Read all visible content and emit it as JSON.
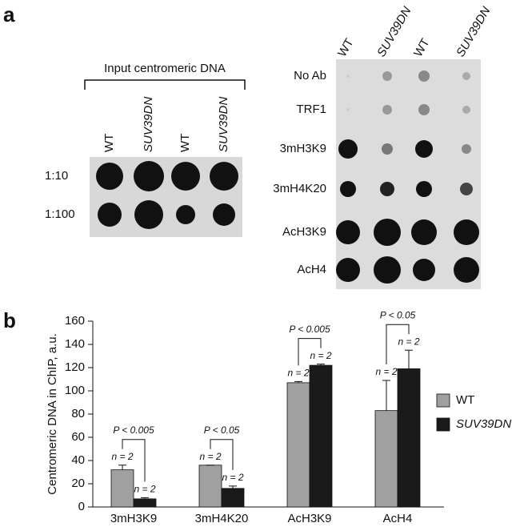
{
  "panel_a": {
    "label": "a",
    "input_title": "Input centromeric DNA",
    "input_columns": [
      "WT",
      "SUV39DN",
      "WT",
      "SUV39DN"
    ],
    "input_rows": [
      "1:10",
      "1:100"
    ],
    "chip_columns": [
      "WT",
      "SUV39DN",
      "WT",
      "SUV39DN"
    ],
    "chip_rows": [
      "No Ab",
      "TRF1",
      "3mH3K9",
      "3mH4K20",
      "AcH3K9",
      "AcH4"
    ]
  },
  "chart_data": {
    "type": "bar",
    "panel_label": "b",
    "y_label": "Centromeric DNA in ChIP, a.u.",
    "categories": [
      "3mH3K9",
      "3mH4K20",
      "AcH3K9",
      "AcH4"
    ],
    "series": [
      {
        "name": "WT",
        "color": "#a0a0a0",
        "values": [
          32,
          36,
          107,
          83
        ],
        "errors": [
          4,
          0,
          1,
          26
        ],
        "n_labels": [
          "n = 2",
          "n = 2",
          "n = 2",
          "n = 2"
        ]
      },
      {
        "name": "SUV39DN",
        "color": "#1a1a1a",
        "values": [
          7,
          16,
          122,
          119
        ],
        "errors": [
          1,
          2,
          1,
          16
        ],
        "n_labels": [
          "n = 2",
          "n = 2",
          "n = 2",
          "n = 2"
        ]
      }
    ],
    "p_values": [
      "P < 0.005",
      "P < 0.05",
      "P < 0.005",
      "P < 0.05"
    ],
    "ylim": [
      0,
      160
    ],
    "yticks": [
      0,
      20,
      40,
      60,
      80,
      100,
      120,
      140,
      160
    ]
  }
}
